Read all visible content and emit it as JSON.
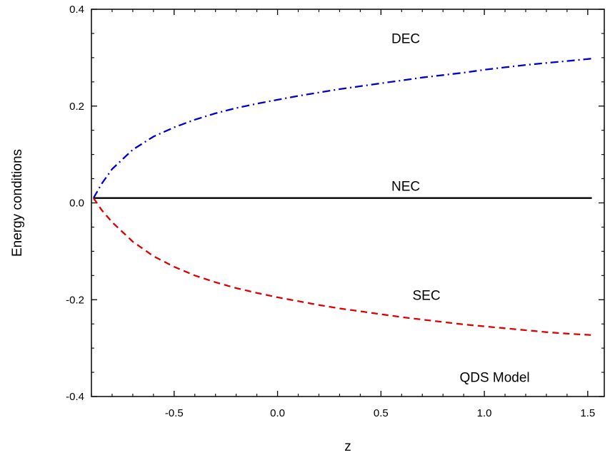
{
  "chart_data": {
    "type": "line",
    "title": "",
    "xlabel": "z",
    "ylabel": "Energy conditions",
    "xlim": [
      -0.9,
      1.58
    ],
    "ylim": [
      -0.4,
      0.4
    ],
    "xticks": [
      -0.5,
      0.0,
      0.5,
      1.0,
      1.5
    ],
    "xtick_labels": [
      "-0.5",
      "0.0",
      "0.5",
      "1.0",
      "1.5"
    ],
    "yticks": [
      -0.4,
      -0.2,
      0.0,
      0.2,
      0.4
    ],
    "ytick_labels": [
      "-0.4",
      "-0.2",
      "0.0",
      "0.2",
      "0.4"
    ],
    "grid": false,
    "annotation": "QDS Model",
    "series": [
      {
        "name": "DEC",
        "color": "#0000cc",
        "style": "dash-dot",
        "x": [
          -0.89,
          -0.85,
          -0.8,
          -0.7,
          -0.6,
          -0.5,
          -0.4,
          -0.3,
          -0.2,
          -0.1,
          0.0,
          0.1,
          0.2,
          0.3,
          0.4,
          0.5,
          0.6,
          0.7,
          0.8,
          0.9,
          1.0,
          1.1,
          1.2,
          1.3,
          1.4,
          1.52
        ],
        "y": [
          0.01,
          0.04,
          0.07,
          0.11,
          0.137,
          0.156,
          0.172,
          0.185,
          0.196,
          0.205,
          0.213,
          0.221,
          0.228,
          0.235,
          0.241,
          0.247,
          0.253,
          0.259,
          0.264,
          0.269,
          0.275,
          0.28,
          0.285,
          0.289,
          0.293,
          0.298
        ]
      },
      {
        "name": "NEC",
        "color": "#000000",
        "style": "solid",
        "x": [
          -0.89,
          1.52
        ],
        "y": [
          0.01,
          0.01
        ]
      },
      {
        "name": "SEC",
        "color": "#dd0000",
        "style": "dashed",
        "x": [
          -0.89,
          -0.85,
          -0.8,
          -0.7,
          -0.6,
          -0.5,
          -0.4,
          -0.3,
          -0.2,
          -0.1,
          0.0,
          0.1,
          0.2,
          0.3,
          0.4,
          0.5,
          0.6,
          0.7,
          0.8,
          0.9,
          1.0,
          1.1,
          1.2,
          1.3,
          1.4,
          1.52
        ],
        "y": [
          0.01,
          -0.015,
          -0.04,
          -0.08,
          -0.11,
          -0.132,
          -0.15,
          -0.164,
          -0.176,
          -0.186,
          -0.195,
          -0.203,
          -0.211,
          -0.218,
          -0.224,
          -0.23,
          -0.236,
          -0.241,
          -0.246,
          -0.251,
          -0.255,
          -0.259,
          -0.263,
          -0.267,
          -0.27,
          -0.273
        ]
      }
    ],
    "series_label_positions": {
      "DEC": [
        0.62,
        0.33
      ],
      "NEC": [
        0.62,
        0.025
      ],
      "SEC": [
        0.72,
        -0.2
      ]
    }
  }
}
